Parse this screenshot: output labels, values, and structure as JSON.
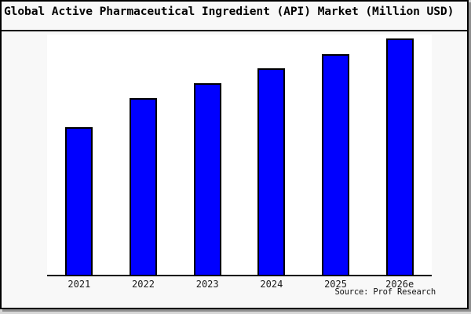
{
  "window": {
    "outer_bg": "#d6d6d6",
    "frame_border_color": "#000000",
    "inner_bg": "#f8f8f8"
  },
  "header": {
    "title": "Global Active Pharmaceutical Ingredient (API) Market (Million USD)"
  },
  "chart_data": {
    "type": "bar",
    "title": "Global Active Pharmaceutical Ingredient (API) Market (Million USD)",
    "categories": [
      "2021",
      "2022",
      "2023",
      "2024",
      "2025",
      "2026e"
    ],
    "values": [
      188,
      225,
      244,
      263,
      281,
      301
    ],
    "values_note": "y-axis has no tick labels in image; values are relative bar heights in pixels",
    "values_indexed_2021_100": [
      100,
      120,
      130,
      140,
      149,
      160
    ],
    "xlabel": "",
    "ylabel": "",
    "y_axis_ticks": [],
    "grid": false,
    "legend": "none",
    "bar_color": "#0000ff",
    "bar_border_color": "#000000",
    "plot_bg": "#ffffff",
    "axis_color": "#000000"
  },
  "footer": {
    "source": "Source: Prof Research"
  }
}
